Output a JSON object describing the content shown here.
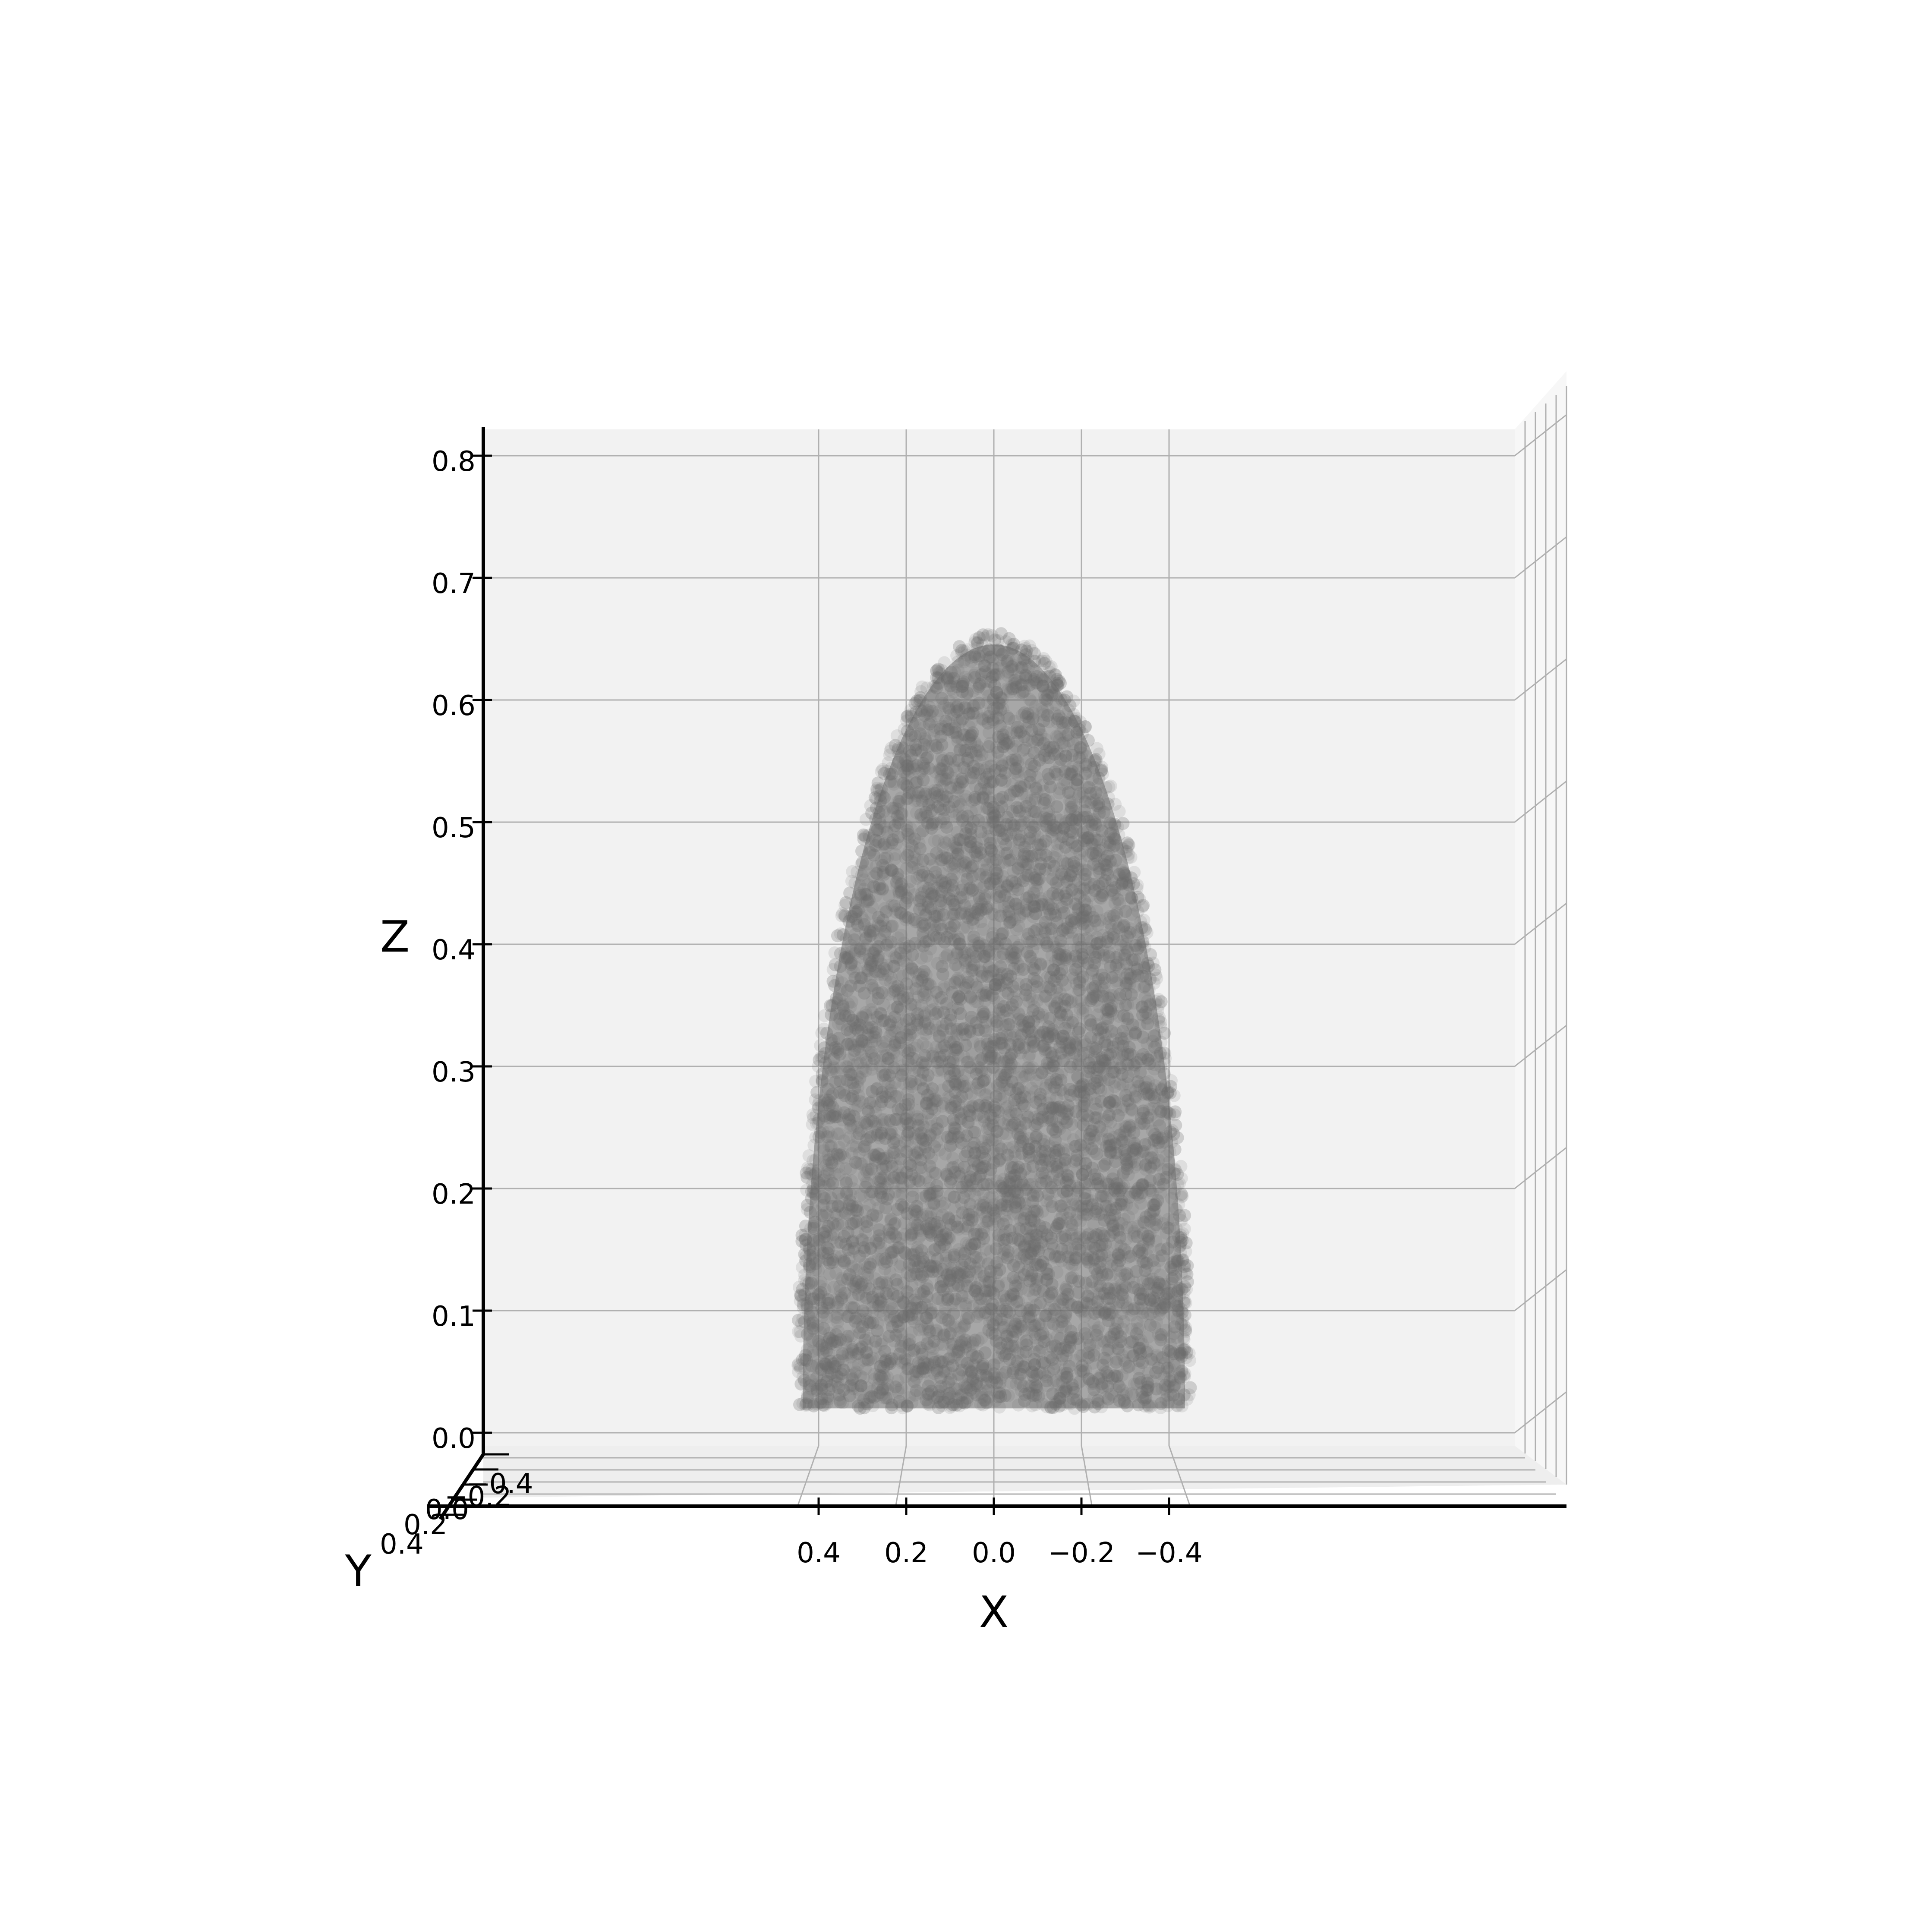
{
  "chart_data": {
    "type": "scatter",
    "subtype": "3d-point-cloud",
    "view": "front (X axis reversed, Y axis foreshortened)",
    "shape": "upper half of an ellipsoid (dome)",
    "marker_color": "#696969",
    "marker_alpha": 0.15,
    "pane_color": "#f2f2f2",
    "grid": true,
    "xlabel": "X",
    "ylabel": "Y",
    "zlabel": "Z",
    "xlim": [
      0.5,
      -0.5
    ],
    "ylim": [
      0.4,
      -0.4
    ],
    "zlim": [
      0.0,
      0.82
    ],
    "x_ticks": [
      0.4,
      0.2,
      0.0,
      -0.2,
      -0.4
    ],
    "x_tick_labels": [
      "0.4",
      "0.2",
      "0.0",
      "−0.2",
      "−0.4"
    ],
    "y_tick_labels": [
      "0.4",
      "0.2",
      "0.0",
      "−0.2",
      "−0.4"
    ],
    "z_ticks": [
      0.0,
      0.1,
      0.2,
      0.3,
      0.4,
      0.5,
      0.6,
      0.7,
      0.8
    ],
    "z_tick_labels": [
      "0.0",
      "0.1",
      "0.2",
      "0.3",
      "0.4",
      "0.5",
      "0.6",
      "0.7",
      "0.8"
    ],
    "dome": {
      "x_semi_axis": 0.45,
      "z_base": 0.02,
      "z_apex": 0.655
    }
  }
}
